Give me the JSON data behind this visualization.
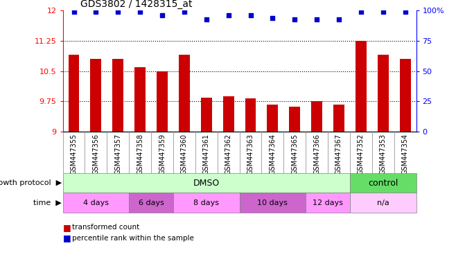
{
  "title": "GDS3802 / 1428315_at",
  "samples": [
    "GSM447355",
    "GSM447356",
    "GSM447357",
    "GSM447358",
    "GSM447359",
    "GSM447360",
    "GSM447361",
    "GSM447362",
    "GSM447363",
    "GSM447364",
    "GSM447365",
    "GSM447366",
    "GSM447367",
    "GSM447352",
    "GSM447353",
    "GSM447354"
  ],
  "bar_values": [
    10.9,
    10.8,
    10.8,
    10.6,
    10.5,
    10.9,
    9.85,
    9.87,
    9.82,
    9.67,
    9.62,
    9.75,
    9.67,
    11.25,
    10.9,
    10.8
  ],
  "dot_percentiles": [
    99,
    99,
    99,
    99,
    96,
    99,
    93,
    96,
    96,
    94,
    93,
    93,
    93,
    99,
    99,
    99
  ],
  "bar_color": "#cc0000",
  "dot_color": "#0000cc",
  "ymin": 9.0,
  "ymax": 12.0,
  "yticks_left": [
    9.0,
    9.75,
    10.5,
    11.25,
    12.0
  ],
  "yticks_right": [
    0,
    25,
    50,
    75,
    100
  ],
  "ytick_labels_left": [
    "9",
    "9.75",
    "10.5",
    "11.25",
    "12"
  ],
  "ytick_labels_right": [
    "0",
    "25",
    "50",
    "75",
    "100%"
  ],
  "grid_lines": [
    9.75,
    10.5,
    11.25
  ],
  "growth_protocol_label": "growth protocol",
  "time_label": "time",
  "dmso_label": "DMSO",
  "control_label": "control",
  "time_groups": [
    {
      "label": "4 days",
      "start": 0,
      "end": 3
    },
    {
      "label": "6 days",
      "start": 3,
      "end": 5
    },
    {
      "label": "8 days",
      "start": 5,
      "end": 8
    },
    {
      "label": "10 days",
      "start": 8,
      "end": 11
    },
    {
      "label": "12 days",
      "start": 11,
      "end": 13
    },
    {
      "label": "n/a",
      "start": 13,
      "end": 16
    }
  ],
  "time_colors": [
    "#ff99ff",
    "#cc66cc",
    "#ff99ff",
    "#cc66cc",
    "#ff99ff",
    "#ffccff"
  ],
  "dmso_range": [
    0,
    13
  ],
  "control_range": [
    13,
    16
  ],
  "dmso_color": "#ccffcc",
  "control_color": "#66dd66",
  "legend_bar": "transformed count",
  "legend_dot": "percentile rank within the sample",
  "bar_width": 0.5,
  "dot_size": 18,
  "xtick_bg": "#d8d8d8"
}
